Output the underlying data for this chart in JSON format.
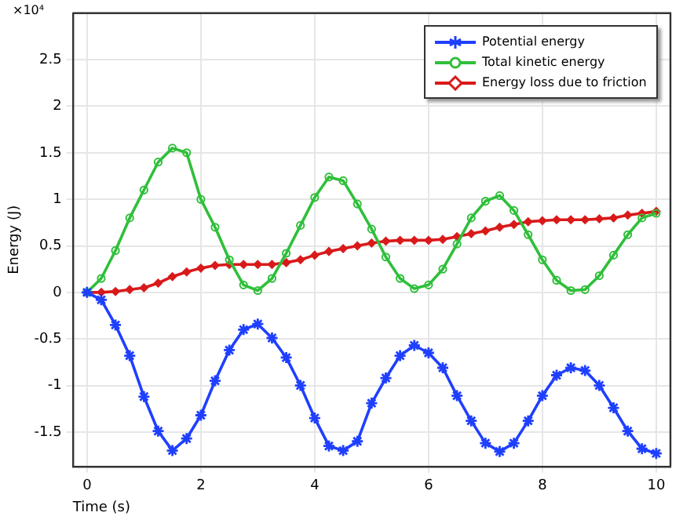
{
  "chart_data": {
    "type": "line",
    "xlabel": "Time (s)",
    "ylabel": "Energy (J)",
    "annotations": [
      "×10⁴"
    ],
    "x": [
      0,
      0.25,
      0.5,
      0.75,
      1,
      1.25,
      1.5,
      1.75,
      2,
      2.25,
      2.5,
      2.75,
      3,
      3.25,
      3.5,
      3.75,
      4,
      4.25,
      4.5,
      4.75,
      5,
      5.25,
      5.5,
      5.75,
      6,
      6.25,
      6.5,
      6.75,
      7,
      7.25,
      7.5,
      7.75,
      8,
      8.25,
      8.5,
      8.75,
      9,
      9.25,
      9.5,
      9.75,
      10
    ],
    "series": [
      {
        "name": "Potential energy",
        "color": "#1f3fff",
        "marker": "cross",
        "values": [
          0,
          -0.08,
          -0.35,
          -0.68,
          -1.12,
          -1.49,
          -1.7,
          -1.57,
          -1.32,
          -0.95,
          -0.62,
          -0.4,
          -0.34,
          -0.49,
          -0.7,
          -1.0,
          -1.35,
          -1.65,
          -1.7,
          -1.6,
          -1.19,
          -0.92,
          -0.68,
          -0.57,
          -0.65,
          -0.81,
          -1.11,
          -1.38,
          -1.62,
          -1.71,
          -1.62,
          -1.38,
          -1.11,
          -0.89,
          -0.81,
          -0.84,
          -1.0,
          -1.24,
          -1.49,
          -1.68,
          -1.73
        ]
      },
      {
        "name": "Total kinetic energy",
        "color": "#2fbf3a",
        "marker": "circle",
        "values": [
          0,
          0.15,
          0.45,
          0.8,
          1.1,
          1.4,
          1.55,
          1.5,
          1.0,
          0.7,
          0.35,
          0.08,
          0.02,
          0.15,
          0.42,
          0.72,
          1.02,
          1.24,
          1.2,
          0.95,
          0.68,
          0.38,
          0.15,
          0.04,
          0.08,
          0.25,
          0.52,
          0.8,
          0.98,
          1.04,
          0.88,
          0.62,
          0.35,
          0.13,
          0.02,
          0.03,
          0.18,
          0.4,
          0.62,
          0.8,
          0.85
        ]
      },
      {
        "name": "Energy loss due to friction",
        "color": "#d91a1a",
        "marker": "diamond",
        "values": [
          0,
          0,
          0.01,
          0.03,
          0.05,
          0.1,
          0.17,
          0.22,
          0.26,
          0.29,
          0.3,
          0.3,
          0.3,
          0.3,
          0.32,
          0.35,
          0.4,
          0.44,
          0.47,
          0.5,
          0.53,
          0.55,
          0.56,
          0.56,
          0.56,
          0.57,
          0.6,
          0.63,
          0.66,
          0.7,
          0.73,
          0.76,
          0.77,
          0.78,
          0.78,
          0.78,
          0.79,
          0.8,
          0.83,
          0.85,
          0.87
        ]
      }
    ],
    "xlim": [
      -0.25,
      10.25
    ],
    "xticks": [
      0,
      2,
      4,
      6,
      8,
      10
    ],
    "ylim": [
      -1.87,
      3
    ],
    "yticks": [
      -1.5,
      -1,
      -0.5,
      0,
      0.5,
      1,
      1.5,
      2,
      2.5
    ],
    "grid": true,
    "legend": "top right",
    "line_style": "solid"
  }
}
